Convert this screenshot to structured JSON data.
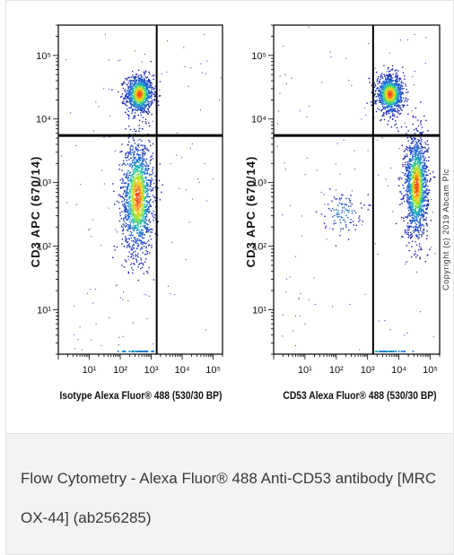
{
  "caption": "Flow Cytometry - Alexa Fluor® 488 Anti-CD53 antibody [MRC OX-44] (ab256285)",
  "copyright": "Copyright (c) 2019 Abcam Plc",
  "colors": {
    "density_low": "#1a1aa8",
    "density_mid": "#22c9a0",
    "density_high": "#f03a1a",
    "gate_line": "#000000",
    "caption_bg": "#f3f3f3"
  },
  "chart_data": [
    {
      "type": "scatter",
      "subtype": "flow-cytometry-density",
      "title": "",
      "xlabel": "Isotype Alexa Fluor® 488  (530/30 BP)",
      "ylabel": "CD3 APC  (670/14)",
      "x_scale": "log",
      "y_scale": "log",
      "xlim": [
        1,
        200000
      ],
      "ylim": [
        2,
        300000
      ],
      "x_ticks": [
        10,
        100,
        1000,
        10000,
        100000
      ],
      "x_tick_labels": [
        "10¹",
        "10²",
        "10³",
        "10⁴",
        "10⁵"
      ],
      "y_ticks": [
        10,
        100,
        1000,
        10000,
        100000
      ],
      "y_tick_labels": [
        "10¹",
        "10²",
        "10³",
        "10⁴",
        "10⁵"
      ],
      "gate": {
        "x": 1500,
        "y": 5500
      },
      "populations": [
        {
          "name": "",
          "x_center": 400,
          "y_center": 25000,
          "x_spread": 0.22,
          "y_spread": 0.15,
          "weight": 0.38
        },
        {
          "name": "",
          "x_center": 350,
          "y_center": 600,
          "x_spread": 0.25,
          "y_spread": 0.45,
          "weight": 0.6
        }
      ],
      "grid": false,
      "legend": "none"
    },
    {
      "type": "scatter",
      "subtype": "flow-cytometry-density",
      "title": "",
      "xlabel": "CD53 Alexa Fluor® 488  (530/30 BP)",
      "ylabel": "CD3 APC  (670/14)",
      "x_scale": "log",
      "y_scale": "log",
      "xlim": [
        1,
        200000
      ],
      "ylim": [
        2,
        300000
      ],
      "x_ticks": [
        10,
        100,
        1000,
        10000,
        100000
      ],
      "x_tick_labels": [
        "10¹",
        "10²",
        "10³",
        "10⁴",
        "10⁵"
      ],
      "y_ticks": [
        10,
        100,
        1000,
        10000,
        100000
      ],
      "y_tick_labels": [
        "10¹",
        "10²",
        "10³",
        "10⁴",
        "10⁵"
      ],
      "gate": {
        "x": 1500,
        "y": 5500
      },
      "populations": [
        {
          "name": "",
          "x_center": 5000,
          "y_center": 25000,
          "x_spread": 0.22,
          "y_spread": 0.15,
          "weight": 0.38
        },
        {
          "name": "",
          "x_center": 35000,
          "y_center": 900,
          "x_spread": 0.18,
          "y_spread": 0.4,
          "weight": 0.58
        },
        {
          "name": "",
          "x_center": 150,
          "y_center": 350,
          "x_spread": 0.3,
          "y_spread": 0.15,
          "weight": 0.04
        }
      ],
      "grid": false,
      "legend": "none"
    }
  ]
}
